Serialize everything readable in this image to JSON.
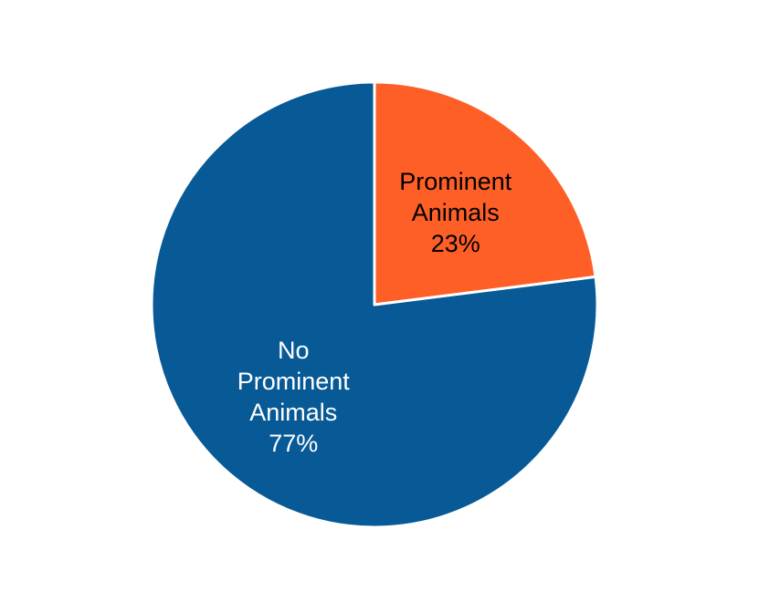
{
  "chart_data": {
    "type": "pie",
    "categories": [
      "Prominent Animals",
      "No Prominent Animals"
    ],
    "values": [
      23,
      77
    ],
    "value_labels": [
      "23%",
      "77%"
    ],
    "colors": [
      "#fe5f27",
      "#075a96"
    ],
    "label_colors": [
      "#000000",
      "#ffffff"
    ]
  }
}
